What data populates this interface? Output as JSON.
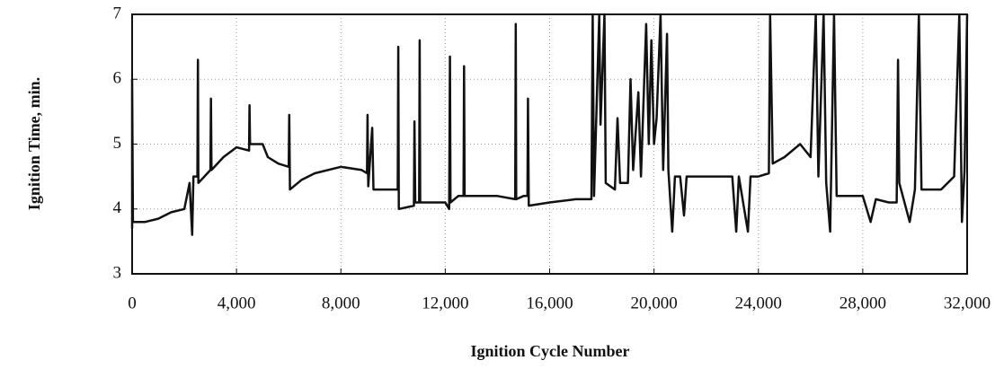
{
  "chart_data": {
    "type": "line",
    "xlabel": "Ignition Cycle Number",
    "ylabel": "Ignition Time, min.",
    "xlim": [
      0,
      32000
    ],
    "ylim": [
      3,
      7
    ],
    "xticks": [
      0,
      {
        "value": 4000,
        "label": "4,000"
      },
      {
        "value": 8000,
        "label": "8,000"
      },
      {
        "value": 12000,
        "label": "12,000"
      },
      {
        "value": 16000,
        "label": "16,000"
      },
      {
        "value": 20000,
        "label": "20,000"
      },
      {
        "value": 24000,
        "label": "24,000"
      },
      {
        "value": 28000,
        "label": "28,000"
      },
      {
        "value": 32000,
        "label": "32,000"
      }
    ],
    "yticks": [
      3,
      4,
      5,
      6,
      7
    ],
    "grid": true,
    "series": [
      {
        "color": "#111111",
        "x": [
          0,
          0,
          30,
          500,
          1000,
          1500,
          2000,
          2200,
          2300,
          2350,
          2500,
          2520,
          2540,
          3000,
          3020,
          3040,
          3500,
          4000,
          4480,
          4500,
          4520,
          5000,
          5200,
          5600,
          6000,
          6020,
          6050,
          6500,
          7000,
          8000,
          8800,
          9000,
          9020,
          9050,
          9200,
          9250,
          10000,
          10180,
          10200,
          10220,
          10800,
          10820,
          10850,
          11000,
          11020,
          11040,
          12000,
          12150,
          12180,
          12200,
          12500,
          12700,
          12720,
          12740,
          13500,
          14000,
          14680,
          14700,
          14720,
          15000,
          15150,
          15170,
          15200,
          16000,
          17000,
          17600,
          17650,
          17700,
          17900,
          17950,
          18100,
          18150,
          18500,
          18600,
          18700,
          19000,
          19100,
          19200,
          19400,
          19500,
          19700,
          19800,
          19900,
          20000,
          20100,
          20250,
          20350,
          20500,
          20550,
          20700,
          20800,
          21000,
          21150,
          21250,
          22000,
          23000,
          23150,
          23250,
          23600,
          23700,
          24000,
          24400,
          24450,
          24550,
          25000,
          25600,
          26000,
          26200,
          26300,
          26500,
          26600,
          26750,
          26900,
          27000,
          27300,
          28000,
          28300,
          28500,
          29000,
          29300,
          29350,
          29400,
          29800,
          30000,
          30150,
          30250,
          31000,
          31500,
          31700,
          31800,
          31900,
          32000
        ],
        "values": [
          3.7,
          6.0,
          3.8,
          3.8,
          3.85,
          3.95,
          4.0,
          4.4,
          3.6,
          4.5,
          4.5,
          6.3,
          4.4,
          4.6,
          5.7,
          4.6,
          4.8,
          4.95,
          4.9,
          5.6,
          5.0,
          5.0,
          4.8,
          4.7,
          4.65,
          5.45,
          4.3,
          4.45,
          4.55,
          4.65,
          4.6,
          4.55,
          5.45,
          4.35,
          5.25,
          4.3,
          4.3,
          4.3,
          6.5,
          4.0,
          4.05,
          5.35,
          4.1,
          4.1,
          6.6,
          4.1,
          4.1,
          4.0,
          6.35,
          4.1,
          4.2,
          4.2,
          6.2,
          4.2,
          4.2,
          4.2,
          4.15,
          6.85,
          4.15,
          4.2,
          4.2,
          5.7,
          4.05,
          4.1,
          4.15,
          4.15,
          7,
          4.2,
          7,
          5.3,
          7,
          4.4,
          4.3,
          5.4,
          4.4,
          4.4,
          6.0,
          4.6,
          5.8,
          4.5,
          6.85,
          5.0,
          6.6,
          5.0,
          5.4,
          7,
          4.6,
          6.7,
          4.6,
          3.65,
          4.5,
          4.5,
          3.9,
          4.5,
          4.5,
          4.5,
          3.65,
          4.5,
          3.65,
          4.5,
          4.5,
          4.55,
          7,
          4.7,
          4.8,
          5.0,
          4.8,
          7,
          4.5,
          7,
          4.4,
          3.65,
          7,
          4.2,
          4.2,
          4.2,
          3.8,
          4.15,
          4.1,
          4.1,
          6.3,
          4.4,
          3.8,
          4.3,
          7,
          4.3,
          4.3,
          4.5,
          7,
          3.8,
          4.6,
          7
        ]
      }
    ]
  }
}
